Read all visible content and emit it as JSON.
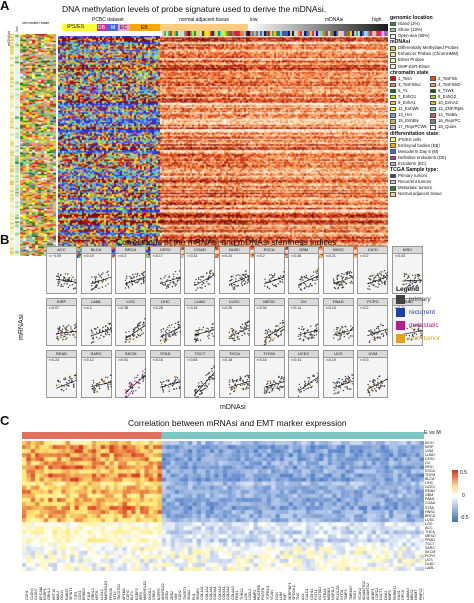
{
  "panelA": {
    "letter": "A",
    "title": "DNA methylation levels of probe signature used to derive the mDNAsi.",
    "left_labels": [
      "mDNAsi",
      "genom. loc.",
      "chromatin state"
    ],
    "header_labels": {
      "pcbc": "PCBC dataset",
      "ips": "iPS/ES",
      "db": "DB",
      "m": "M",
      "ec": "EC",
      "eb": "EB",
      "normal": "normal adjacent tissue",
      "low": "low",
      "mdnasi": "mDNAsi",
      "high": "high"
    },
    "legend": {
      "genomic_title": "genomic location",
      "genomic": [
        {
          "label": "Island (2%)",
          "color": "#3a8c3a"
        },
        {
          "label": "Shore (13%)",
          "color": "#8fd18f"
        },
        {
          "label": "Open-sea (85%)",
          "color": "#e0f3e0"
        }
      ],
      "mdnasi_title": "mDNAsi",
      "mdnasi": [
        {
          "label": "Differentially Methylated Probes",
          "color": "#e8c24a"
        },
        {
          "label": "Enhancer Probes (ChromHMM)",
          "color": "#f2e28a"
        },
        {
          "label": "Elmer Probes",
          "color": "#f6efb4"
        },
        {
          "label": "DMP-EnR-Elmer",
          "color": "#fbf7db"
        }
      ],
      "chromatin_title": "chromatin state",
      "chromatin": [
        {
          "label": "1_TssA",
          "color": "#ff0000"
        },
        {
          "label": "2_TssFlnk",
          "color": "#ff4500"
        },
        {
          "label": "3_TssFlnkU",
          "color": "#ff7f50"
        },
        {
          "label": "4_TssFlnkD",
          "color": "#ff9a66"
        },
        {
          "label": "5_Tx",
          "color": "#008000"
        },
        {
          "label": "6_TxWk",
          "color": "#006400"
        },
        {
          "label": "7_EnhG1",
          "color": "#c2e105"
        },
        {
          "label": "8_EnhG2",
          "color": "#9acd32"
        },
        {
          "label": "9_EnhA1",
          "color": "#ffc34d"
        },
        {
          "label": "10_EnhA2",
          "color": "#ffb000"
        },
        {
          "label": "11_EnhWk",
          "color": "#ffff00"
        },
        {
          "label": "12_ZNF/Rpts",
          "color": "#66cdaa"
        },
        {
          "label": "13_Het",
          "color": "#8a91d0"
        },
        {
          "label": "14_TssBiv",
          "color": "#cd5c5c"
        },
        {
          "label": "15_EnhBiv",
          "color": "#bdb76b"
        },
        {
          "label": "16_ReprPC",
          "color": "#808080"
        },
        {
          "label": "17_ReprPCWk",
          "color": "#c0c0c0"
        },
        {
          "label": "18_Quies",
          "color": "#ffffff"
        }
      ],
      "diff_title": "differentiation state:",
      "diff": [
        {
          "label": "iPS/ES cells",
          "color": "#ffff33"
        },
        {
          "label": "Embryoid bodies (EB)",
          "color": "#ffa500"
        },
        {
          "label": "Mesoderm Day 5 (M)",
          "color": "#4169e1"
        },
        {
          "label": "Definitive endoderm (DE)",
          "color": "#cc3399"
        },
        {
          "label": "Ectoderm (EC)",
          "color": "#e8a0d0"
        }
      ],
      "tcga_title": "TCGA Sample type:",
      "tcga": [
        {
          "label": "Primary tumors",
          "color": "#4b3a8c"
        },
        {
          "label": "Recurrent tumors",
          "color": "#d1c4e9"
        },
        {
          "label": "Metastatic tumors",
          "color": "#2e7d32"
        },
        {
          "label": "Normal adjacent tissue",
          "color": "#ffcc80"
        }
      ]
    }
  },
  "panelB": {
    "letter": "B",
    "title": "Correlations of the mRNAsi and mDNAsi stemness indices",
    "ylabel": "mRNAsi",
    "xlabel": "mDNAsi",
    "legend_title": "Legend",
    "legend": [
      {
        "label": "primary",
        "color": "#424242"
      },
      {
        "label": "recurrent",
        "color": "#1e3fa8"
      },
      {
        "label": "metastatic",
        "color": "#b41e8c"
      },
      {
        "label": "non–tumor",
        "color": "#e6a020"
      }
    ],
    "facets": [
      {
        "name": "ACC",
        "r": "r=−0.09"
      },
      {
        "name": "BLCA",
        "r": "r=0.19"
      },
      {
        "name": "BRCA",
        "r": "r=0.2"
      },
      {
        "name": "CESC",
        "r": "r=0.17"
      },
      {
        "name": "COAD",
        "r": "r=0.31"
      },
      {
        "name": "DLBC",
        "r": "r=0.24"
      },
      {
        "name": "ESCA",
        "r": "r=0.2"
      },
      {
        "name": "GBM",
        "r": "r=0.26"
      },
      {
        "name": "HNSC",
        "r": "r=0.21"
      },
      {
        "name": "KICH",
        "r": "r=0.2"
      },
      {
        "name": "KIRC",
        "r": "r=0.03"
      },
      {
        "name": "KIRP",
        "r": "r=0.07"
      },
      {
        "name": "LAML",
        "r": "r=0.2"
      },
      {
        "name": "LGG",
        "r": "r=0.38"
      },
      {
        "name": "LIHC",
        "r": "r=0.28"
      },
      {
        "name": "LUAD",
        "r": "r=0.16"
      },
      {
        "name": "LUSC",
        "r": "r=0.25"
      },
      {
        "name": "MESO",
        "r": "r=0.34"
      },
      {
        "name": "OV",
        "r": "r=0.14"
      },
      {
        "name": "PAAD",
        "r": "r=0.15"
      },
      {
        "name": "PCPG",
        "r": "r=0.2"
      },
      {
        "name": "PRAD",
        "r": "r=0.11"
      },
      {
        "name": "READ",
        "r": "r=0.23"
      },
      {
        "name": "SARC",
        "r": "r=0.12"
      },
      {
        "name": "SKCM",
        "r": "r=0.51"
      },
      {
        "name": "STAD",
        "r": "r=0.16"
      },
      {
        "name": "TGCT",
        "r": "r=0.65"
      },
      {
        "name": "THCA",
        "r": "r=0.18"
      },
      {
        "name": "THYM",
        "r": "r=0.16"
      },
      {
        "name": "UCEC",
        "r": "r=0.41"
      },
      {
        "name": "UCS",
        "r": "r=0.19"
      },
      {
        "name": "UVM",
        "r": "r=0.3"
      }
    ]
  },
  "panelC": {
    "letter": "C",
    "title": "Correlation between mRNAsi and EMT marker expression",
    "e_vs_m": "E vs M",
    "scale": {
      "max": "0.5",
      "mid": "0",
      "min": "-0.5"
    },
    "row_labels": [
      "KICH",
      "KIRP",
      "UVM",
      "LUAD",
      "CESC",
      "OV",
      "KIRC",
      "ESCA",
      "THYM",
      "BLCA",
      "LIHC",
      "UCEC",
      "READ",
      "GBM",
      "PAAD",
      "COAD",
      "STAD",
      "HNSC",
      "BRCA",
      "LUSC",
      "LGG",
      "ACC",
      "THCA",
      "MESO",
      "PRAD",
      "TGCT",
      "SARC",
      "SKCM",
      "PCPG",
      "UCS",
      "DLBC",
      "LAML"
    ],
    "col_labels": [
      "CDH1",
      "CLDN4",
      "CLDN7",
      "EPCAM",
      "ESRP1",
      "GRHL2",
      "KRT19",
      "MAL2",
      "OCLN",
      "RAB25",
      "SPINT1",
      "TJP3",
      "CDS1",
      "ERBB3",
      "F11R",
      "GRHL1",
      "KRT8",
      "LLGL2",
      "MARVELD3",
      "PRSS8",
      "ST14",
      "TACSTD2",
      "AP1M2",
      "CDH3",
      "ELF3",
      "ESRP2",
      "IRF6",
      "MARVELD2",
      "OVOL1",
      "CRB3",
      "BSPRY",
      "ANKRD22",
      "ZEB1",
      "ZEB2",
      "VIM",
      "CDH2",
      "TWIST1",
      "SNAI2",
      "FN1",
      "SPARC",
      "COL1A1",
      "COL1A2",
      "COL3A1",
      "COL5A1",
      "COL5A2",
      "COL6A1",
      "COL6A2",
      "COL6A3",
      "FBN1",
      "THBS2",
      "LOX",
      "LOXL2",
      "MMP2",
      "PDGFRB",
      "POSTN",
      "TGFB1I1",
      "VCAN",
      "DCN",
      "LUM",
      "FAP",
      "SERPINF1",
      "SPOCK1",
      "TNC",
      "AXL",
      "CALD1",
      "CDH11",
      "FSTL1",
      "GLT8D2",
      "HTRA1",
      "MSRB3",
      "NAP1L3",
      "PCOLCE",
      "SYT11",
      "TIMP3",
      "TMEM47",
      "TNS1",
      "VCAN2",
      "ADAMTS12",
      "ADAMTS2",
      "AEBP1",
      "COPZ2",
      "DACT1",
      "DKK3",
      "EMP3",
      "FERMT2",
      "GAS1",
      "GPC6",
      "LAMA4",
      "MEIS2",
      "NNMT",
      "PMP22",
      "PRRX1"
    ]
  }
}
